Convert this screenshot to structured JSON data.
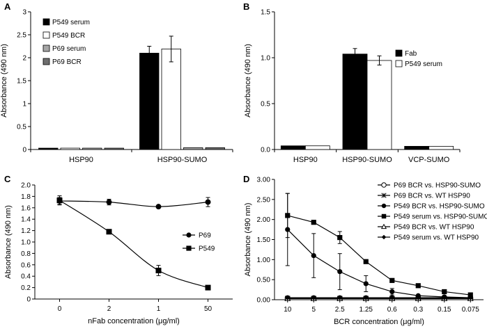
{
  "chart_data": [
    {
      "panel": "A",
      "type": "bar",
      "ylabel": "Absorbance (490 nm)",
      "ylim": [
        0,
        3
      ],
      "yticks": [
        "0",
        "0.5",
        "1",
        "1.5",
        "2",
        "2.5",
        "3"
      ],
      "categories": [
        "HSP90",
        "HSP90-SUMO"
      ],
      "series": [
        {
          "name": "P549 serum",
          "color": "#000000",
          "values": [
            0.03,
            2.1
          ],
          "errors": [
            0,
            0.15
          ]
        },
        {
          "name": "P549 BCR",
          "color": "#ffffff",
          "values": [
            0.03,
            2.19
          ],
          "errors": [
            0,
            0.28
          ]
        },
        {
          "name": "P69 serum",
          "color": "#a6a6a6",
          "values": [
            0.03,
            0.04
          ],
          "errors": [
            0,
            0
          ]
        },
        {
          "name": "P69 BCR",
          "color": "#6e6e6e",
          "values": [
            0.03,
            0.04
          ],
          "errors": [
            0,
            0
          ]
        }
      ]
    },
    {
      "panel": "B",
      "type": "bar",
      "ylabel": "Absorbance (490 nm)",
      "ylim": [
        0,
        1.5
      ],
      "yticks": [
        "0.0",
        "0.5",
        "1.0",
        "1.5"
      ],
      "categories": [
        "HSP90",
        "HSP90-SUMO",
        "VCP-SUMO"
      ],
      "series": [
        {
          "name": "Fab",
          "color": "#000000",
          "values": [
            0.04,
            1.04,
            0.035
          ],
          "errors": [
            0,
            0.06,
            0
          ]
        },
        {
          "name": "P549 serum",
          "color": "#ffffff",
          "values": [
            0.04,
            0.97,
            0.035
          ],
          "errors": [
            0,
            0.05,
            0
          ]
        }
      ]
    },
    {
      "panel": "C",
      "type": "line",
      "ylabel": "Absorbance (490 nm)",
      "xlabel": "nFab concentration (μg/ml)",
      "ylim": [
        0,
        2.0
      ],
      "yticks": [
        "0",
        "0.2",
        "0.4",
        "0.6",
        "0.8",
        "1.0",
        "1.2",
        "1.4",
        "1.6",
        "1.8",
        "2.0"
      ],
      "categories": [
        "0",
        "2",
        "1",
        "50"
      ],
      "series": [
        {
          "name": "P69",
          "marker": "circle",
          "values": [
            1.72,
            1.7,
            1.62,
            1.7
          ],
          "errors": [
            0.06,
            0.05,
            0,
            0.08
          ]
        },
        {
          "name": "P549",
          "marker": "square",
          "values": [
            1.73,
            1.18,
            0.5,
            0.2
          ],
          "errors": [
            0.08,
            0,
            0.09,
            0
          ]
        }
      ]
    },
    {
      "panel": "D",
      "type": "line",
      "ylabel": "Absorbance (490 nm)",
      "xlabel": "BCR concentration (μg/ml)",
      "ylim": [
        0,
        3.0
      ],
      "yticks": [
        "0.00",
        "0.50",
        "1.00",
        "1.50",
        "2.00",
        "2.50",
        "3.00"
      ],
      "categories": [
        "10",
        "5",
        "2.5",
        "1.25",
        "0.6",
        "0.3",
        "0.15",
        "0.075"
      ],
      "series": [
        {
          "name": "P69 BCR vs. HSP90-SUMO",
          "marker": "open-circle",
          "values": [
            0.04,
            0.04,
            0.04,
            0.04,
            0.04,
            0.04,
            0.04,
            0.04
          ],
          "errors": [
            0,
            0,
            0,
            0,
            0,
            0,
            0,
            0
          ]
        },
        {
          "name": "P69 BCR vs. WT HSP90",
          "marker": "star",
          "values": [
            0.03,
            0.03,
            0.03,
            0.03,
            0.03,
            0.03,
            0.03,
            0.03
          ],
          "errors": [
            0,
            0,
            0,
            0,
            0,
            0,
            0,
            0
          ]
        },
        {
          "name": "P549 BCR vs. HSP90-SUMO",
          "marker": "circle",
          "values": [
            1.75,
            1.1,
            0.7,
            0.4,
            0.2,
            0.1,
            0.07,
            0.05
          ],
          "errors": [
            0.9,
            0.55,
            0.45,
            0.2,
            0.08,
            0,
            0,
            0
          ]
        },
        {
          "name": "P549 serum vs. HSP90-SUMO",
          "marker": "square",
          "values": [
            2.1,
            1.93,
            1.55,
            0.95,
            0.48,
            0.35,
            0.2,
            0.12
          ],
          "errors": [
            0.55,
            0,
            0.15,
            0,
            0,
            0,
            0,
            0
          ]
        },
        {
          "name": "P549 BCR vs. WT HSP90",
          "marker": "open-triangle",
          "values": [
            0.03,
            0.03,
            0.03,
            0.03,
            0.03,
            0.03,
            0.03,
            0.03
          ],
          "errors": [
            0,
            0,
            0,
            0,
            0,
            0,
            0,
            0
          ]
        },
        {
          "name": "P549 serum vs. WT HSP90",
          "marker": "diamond",
          "values": [
            0.05,
            0.05,
            0.05,
            0.05,
            0.05,
            0.05,
            0.05,
            0.05
          ],
          "errors": [
            0,
            0,
            0,
            0,
            0,
            0,
            0,
            0
          ]
        }
      ]
    }
  ]
}
